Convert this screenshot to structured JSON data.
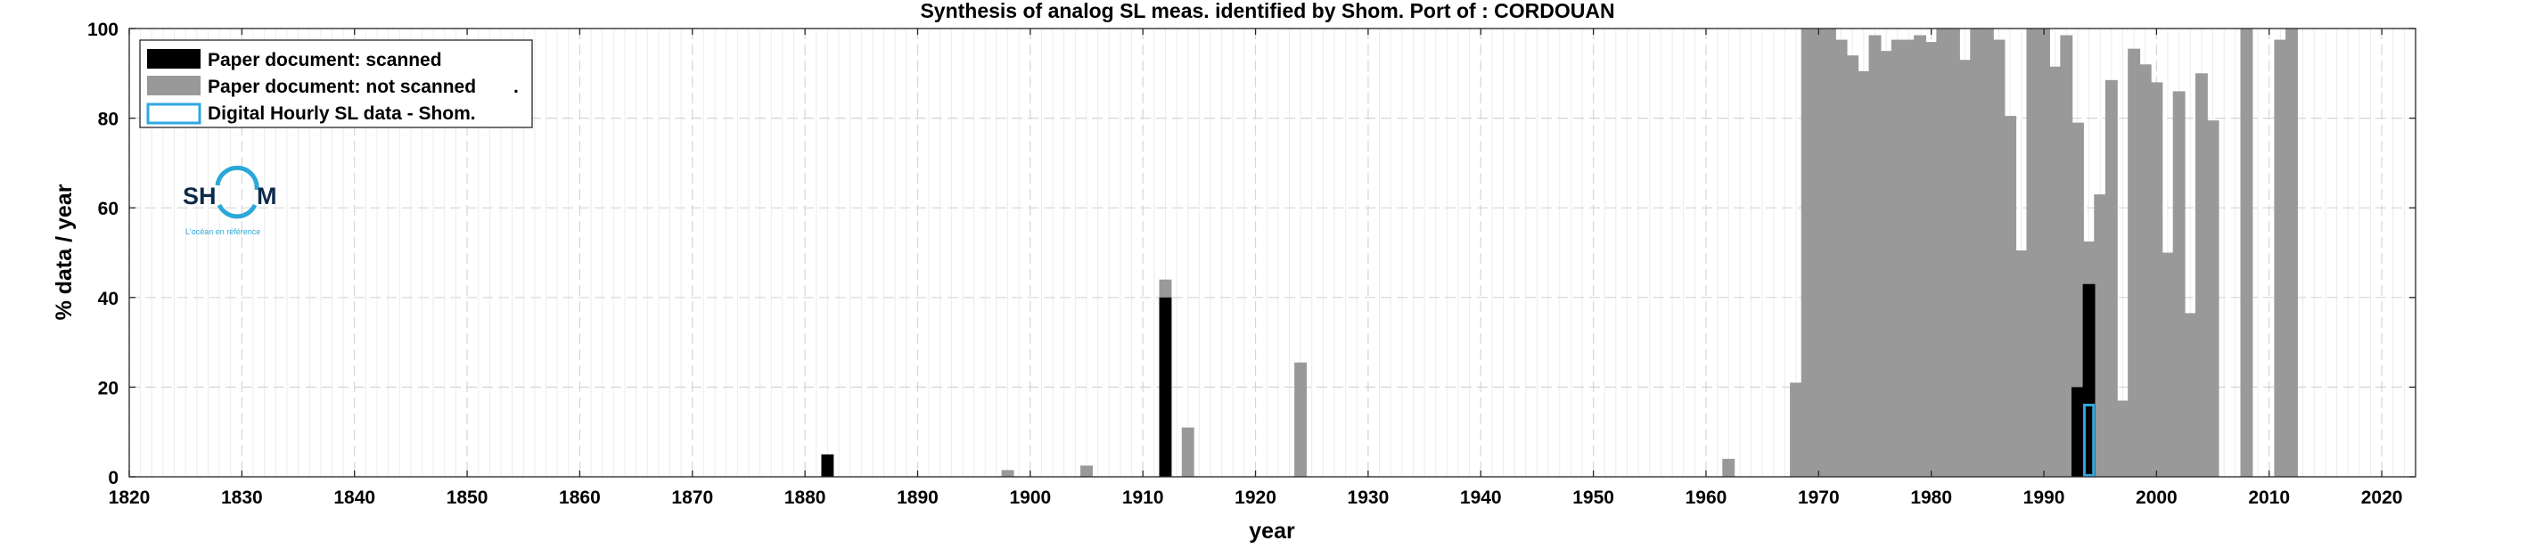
{
  "chart_data": {
    "type": "bar",
    "title": "Synthesis of analog SL meas. identified by Shom. Port of : CORDOUAN",
    "xlabel": "year",
    "ylabel": "% data / year",
    "xlim": [
      1820,
      2023
    ],
    "ylim": [
      0,
      100
    ],
    "xticks": [
      1820,
      1830,
      1840,
      1850,
      1860,
      1870,
      1880,
      1890,
      1900,
      1910,
      1920,
      1930,
      1940,
      1950,
      1960,
      1970,
      1980,
      1990,
      2000,
      2010,
      2020
    ],
    "yticks": [
      0,
      20,
      40,
      60,
      80,
      100
    ],
    "grid": true,
    "minor_grid": true,
    "legend_position": "top-left",
    "series": [
      {
        "name": "Paper document: scanned",
        "color": "#000000",
        "style": "filled",
        "points": [
          [
            1882,
            5
          ],
          [
            1912,
            40
          ],
          [
            1993,
            20
          ],
          [
            1994,
            43
          ]
        ]
      },
      {
        "name": "Paper document: not scanned",
        "color": "#999999",
        "style": "filled",
        "points": [
          [
            1898,
            1.5
          ],
          [
            1905,
            2.5
          ],
          [
            1912,
            44
          ],
          [
            1914,
            11
          ],
          [
            1924,
            25.5
          ],
          [
            1962,
            4
          ],
          [
            1968,
            21
          ],
          [
            1969,
            100
          ],
          [
            1970,
            100
          ],
          [
            1971,
            100
          ],
          [
            1972,
            97.5
          ],
          [
            1973,
            94
          ],
          [
            1974,
            90.5
          ],
          [
            1975,
            98.5
          ],
          [
            1976,
            95
          ],
          [
            1977,
            97.5
          ],
          [
            1978,
            97.5
          ],
          [
            1979,
            98.5
          ],
          [
            1980,
            97
          ],
          [
            1981,
            100
          ],
          [
            1982,
            100
          ],
          [
            1983,
            93
          ],
          [
            1984,
            100
          ],
          [
            1985,
            100
          ],
          [
            1986,
            97.5
          ],
          [
            1987,
            80.5
          ],
          [
            1988,
            50.5
          ],
          [
            1989,
            100
          ],
          [
            1990,
            100
          ],
          [
            1991,
            91.5
          ],
          [
            1992,
            98.5
          ],
          [
            1993,
            79
          ],
          [
            1994,
            52.5
          ],
          [
            1995,
            63
          ],
          [
            1996,
            88.5
          ],
          [
            1997,
            17
          ],
          [
            1998,
            95.5
          ],
          [
            1999,
            92
          ],
          [
            2000,
            88
          ],
          [
            2001,
            50
          ],
          [
            2002,
            86
          ],
          [
            2003,
            36.5
          ],
          [
            2004,
            90
          ],
          [
            2005,
            79.5
          ],
          [
            2008,
            100
          ],
          [
            2011,
            97.5
          ],
          [
            2012,
            100
          ]
        ]
      },
      {
        "name": "Digital Hourly SL data - Shom.",
        "color": "#2fa8e0",
        "style": "outline",
        "points": [
          [
            1994,
            16
          ]
        ]
      }
    ],
    "legend_suffix": "."
  },
  "logo": {
    "text_left": "SH",
    "text_right": "M",
    "tagline": "L'océan en référence"
  }
}
